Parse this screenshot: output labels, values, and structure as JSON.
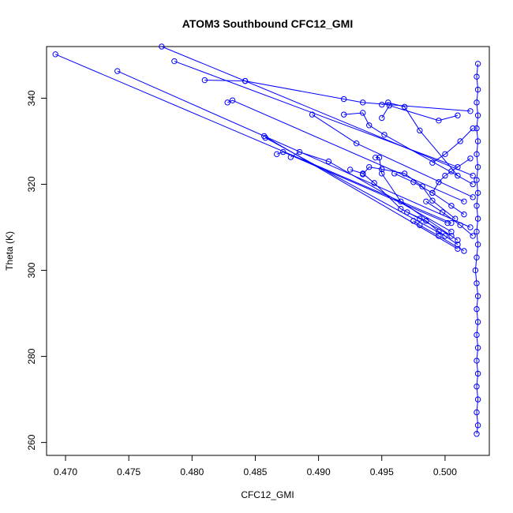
{
  "chart_data": {
    "type": "line",
    "title": "ATOM3 Southbound CFC12_GMI",
    "xlabel": "CFC12_GMI",
    "ylabel": "Theta (K)",
    "xlim": [
      0.4685,
      0.5035
    ],
    "ylim": [
      257,
      352
    ],
    "x_ticks": [
      0.47,
      0.475,
      0.48,
      0.485,
      0.49,
      0.495,
      0.5
    ],
    "x_tick_labels": [
      "0.470",
      "0.475",
      "0.480",
      "0.485",
      "0.490",
      "0.495",
      "0.500"
    ],
    "y_ticks": [
      260,
      280,
      300,
      320,
      340
    ],
    "y_tick_labels": [
      "260",
      "280",
      "300",
      "320",
      "340"
    ],
    "grid": false,
    "markers": "open-circle",
    "color": "#0000ff",
    "series": [
      {
        "points": [
          [
            0.5025,
            262
          ],
          [
            0.5026,
            264
          ],
          [
            0.5025,
            267
          ],
          [
            0.5026,
            270
          ],
          [
            0.5025,
            273
          ],
          [
            0.5026,
            276
          ],
          [
            0.5025,
            279
          ],
          [
            0.5026,
            282
          ],
          [
            0.5025,
            285
          ],
          [
            0.5026,
            288
          ],
          [
            0.5025,
            291
          ],
          [
            0.5026,
            294
          ],
          [
            0.5025,
            297
          ],
          [
            0.5024,
            300
          ],
          [
            0.5025,
            303
          ],
          [
            0.5026,
            306
          ],
          [
            0.5025,
            309
          ],
          [
            0.5026,
            312
          ],
          [
            0.5025,
            315
          ],
          [
            0.5026,
            318
          ],
          [
            0.5025,
            321
          ],
          [
            0.5026,
            324
          ],
          [
            0.5025,
            327
          ],
          [
            0.5026,
            330
          ],
          [
            0.5025,
            333
          ],
          [
            0.5026,
            336
          ],
          [
            0.5025,
            339
          ],
          [
            0.5026,
            342
          ],
          [
            0.5025,
            345
          ],
          [
            0.5026,
            348
          ]
        ]
      },
      {
        "points": [
          [
            0.4692,
            350.2
          ],
          [
            0.5005,
            311
          ]
        ]
      },
      {
        "points": [
          [
            0.4741,
            346.3
          ],
          [
            0.502,
            310
          ]
        ]
      },
      {
        "points": [
          [
            0.4776,
            352.0
          ],
          [
            0.4842,
            344.0
          ],
          [
            0.492,
            339.8
          ],
          [
            0.4935,
            339.0
          ],
          [
            0.502,
            337.0
          ]
        ]
      },
      {
        "points": [
          [
            0.4786,
            348.6
          ],
          [
            0.501,
            324
          ]
        ]
      },
      {
        "points": [
          [
            0.481,
            344.2
          ],
          [
            0.4842,
            344.0
          ],
          [
            0.5022,
            322
          ]
        ]
      },
      {
        "points": [
          [
            0.4828,
            339.0
          ],
          [
            0.4832,
            339.5
          ],
          [
            0.5015,
            316
          ]
        ]
      },
      {
        "points": [
          [
            0.4857,
            331.2
          ],
          [
            0.501,
            305
          ]
        ]
      },
      {
        "points": [
          [
            0.4858,
            330.8
          ],
          [
            0.5,
            308
          ]
        ]
      },
      {
        "points": [
          [
            0.4867,
            327.0
          ],
          [
            0.4872,
            327.5
          ],
          [
            0.5002,
            311
          ]
        ]
      },
      {
        "points": [
          [
            0.4878,
            326.3
          ],
          [
            0.4885,
            327.5
          ],
          [
            0.4908,
            325.3
          ],
          [
            0.5005,
            309
          ]
        ]
      },
      {
        "points": [
          [
            0.4895,
            336.2
          ],
          [
            0.493,
            329.5
          ],
          [
            0.5022,
            317
          ]
        ]
      },
      {
        "points": [
          [
            0.492,
            336.2
          ],
          [
            0.4935,
            336.6
          ],
          [
            0.494,
            333.7
          ],
          [
            0.4952,
            331.5
          ],
          [
            0.5022,
            320
          ]
        ]
      },
      {
        "points": [
          [
            0.4945,
            326.2
          ],
          [
            0.4948,
            326.2
          ],
          [
            0.495,
            322.5
          ],
          [
            0.4965,
            316.0
          ],
          [
            0.501,
            307
          ]
        ]
      },
      {
        "points": [
          [
            0.495,
            338.5
          ],
          [
            0.4955,
            339.0
          ],
          [
            0.4968,
            338.0
          ],
          [
            0.498,
            332.5
          ],
          [
            0.501,
            322
          ]
        ]
      },
      {
        "points": [
          [
            0.495,
            335.4
          ],
          [
            0.4956,
            338.3
          ],
          [
            0.4995,
            334.8
          ],
          [
            0.501,
            336.0
          ]
        ]
      },
      {
        "points": [
          [
            0.4925,
            323.4
          ],
          [
            0.4935,
            322.5
          ],
          [
            0.4944,
            320.3
          ],
          [
            0.4965,
            314.3
          ],
          [
            0.498,
            312.0
          ],
          [
            0.5005,
            308.0
          ]
        ]
      },
      {
        "points": [
          [
            0.4935,
            322.3
          ],
          [
            0.494,
            324.0
          ],
          [
            0.495,
            323.5
          ],
          [
            0.4968,
            322.5
          ],
          [
            0.4982,
            319.5
          ],
          [
            0.499,
            316.2
          ],
          [
            0.5008,
            312.0
          ]
        ]
      },
      {
        "points": [
          [
            0.497,
            313.5
          ],
          [
            0.4985,
            311.5
          ],
          [
            0.4995,
            309.0
          ],
          [
            0.501,
            306.0
          ]
        ]
      },
      {
        "points": [
          [
            0.4975,
            311.5
          ],
          [
            0.498,
            310.5
          ],
          [
            0.4995,
            308.0
          ],
          [
            0.5015,
            304.5
          ]
        ]
      },
      {
        "points": [
          [
            0.499,
            318.0
          ],
          [
            0.4995,
            320.5
          ],
          [
            0.5,
            322.0
          ],
          [
            0.5005,
            323.0
          ],
          [
            0.502,
            326.0
          ]
        ]
      },
      {
        "points": [
          [
            0.4985,
            316.0
          ],
          [
            0.4998,
            313.5
          ],
          [
            0.5012,
            310.5
          ],
          [
            0.5022,
            308.0
          ]
        ]
      },
      {
        "points": [
          [
            0.499,
            325.0
          ],
          [
            0.5,
            327.0
          ],
          [
            0.5012,
            330.0
          ],
          [
            0.5022,
            333.0
          ]
        ]
      },
      {
        "points": [
          [
            0.496,
            322.5
          ],
          [
            0.4975,
            320.5
          ],
          [
            0.499,
            318.0
          ],
          [
            0.5005,
            315.0
          ],
          [
            0.5015,
            313.0
          ]
        ]
      }
    ]
  }
}
